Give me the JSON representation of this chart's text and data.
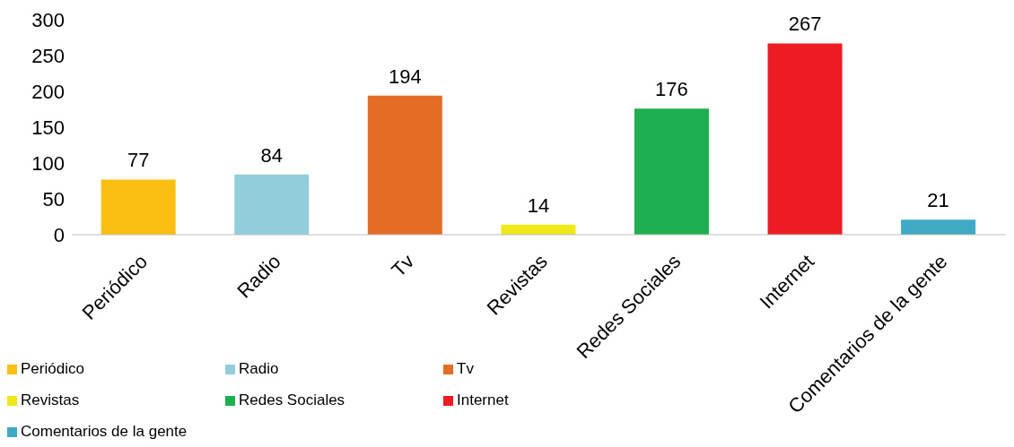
{
  "chart_data": {
    "type": "bar",
    "stacked": true,
    "categories": [
      "Periódico",
      "Radio",
      "Tv",
      "Revistas",
      "Redes Sociales",
      "Internet",
      "Comentarios de la gente"
    ],
    "series": [
      {
        "name": "Periódico",
        "color": "#fbbf14",
        "values": [
          77,
          null,
          null,
          null,
          null,
          null,
          null
        ]
      },
      {
        "name": "Radio",
        "color": "#92cddc",
        "values": [
          null,
          84,
          null,
          null,
          null,
          null,
          null
        ]
      },
      {
        "name": "Tv",
        "color": "#e46c24",
        "values": [
          null,
          null,
          194,
          null,
          null,
          null,
          null
        ]
      },
      {
        "name": "Revistas",
        "color": "#f0e81a",
        "values": [
          null,
          null,
          null,
          14,
          null,
          null,
          null
        ]
      },
      {
        "name": "Redes Sociales",
        "color": "#1eb050",
        "values": [
          null,
          null,
          null,
          null,
          176,
          null,
          null
        ]
      },
      {
        "name": "Internet",
        "color": "#ed1c24",
        "values": [
          null,
          null,
          null,
          null,
          null,
          267,
          null
        ]
      },
      {
        "name": "Comentarios de la gente",
        "color": "#40a9c4",
        "values": [
          null,
          null,
          null,
          null,
          null,
          null,
          21
        ]
      }
    ],
    "ylim": [
      0,
      300
    ],
    "yticks": [
      0,
      50,
      100,
      150,
      200,
      250,
      300
    ],
    "data_labels": true,
    "grid": false,
    "legend": "bottom left"
  }
}
